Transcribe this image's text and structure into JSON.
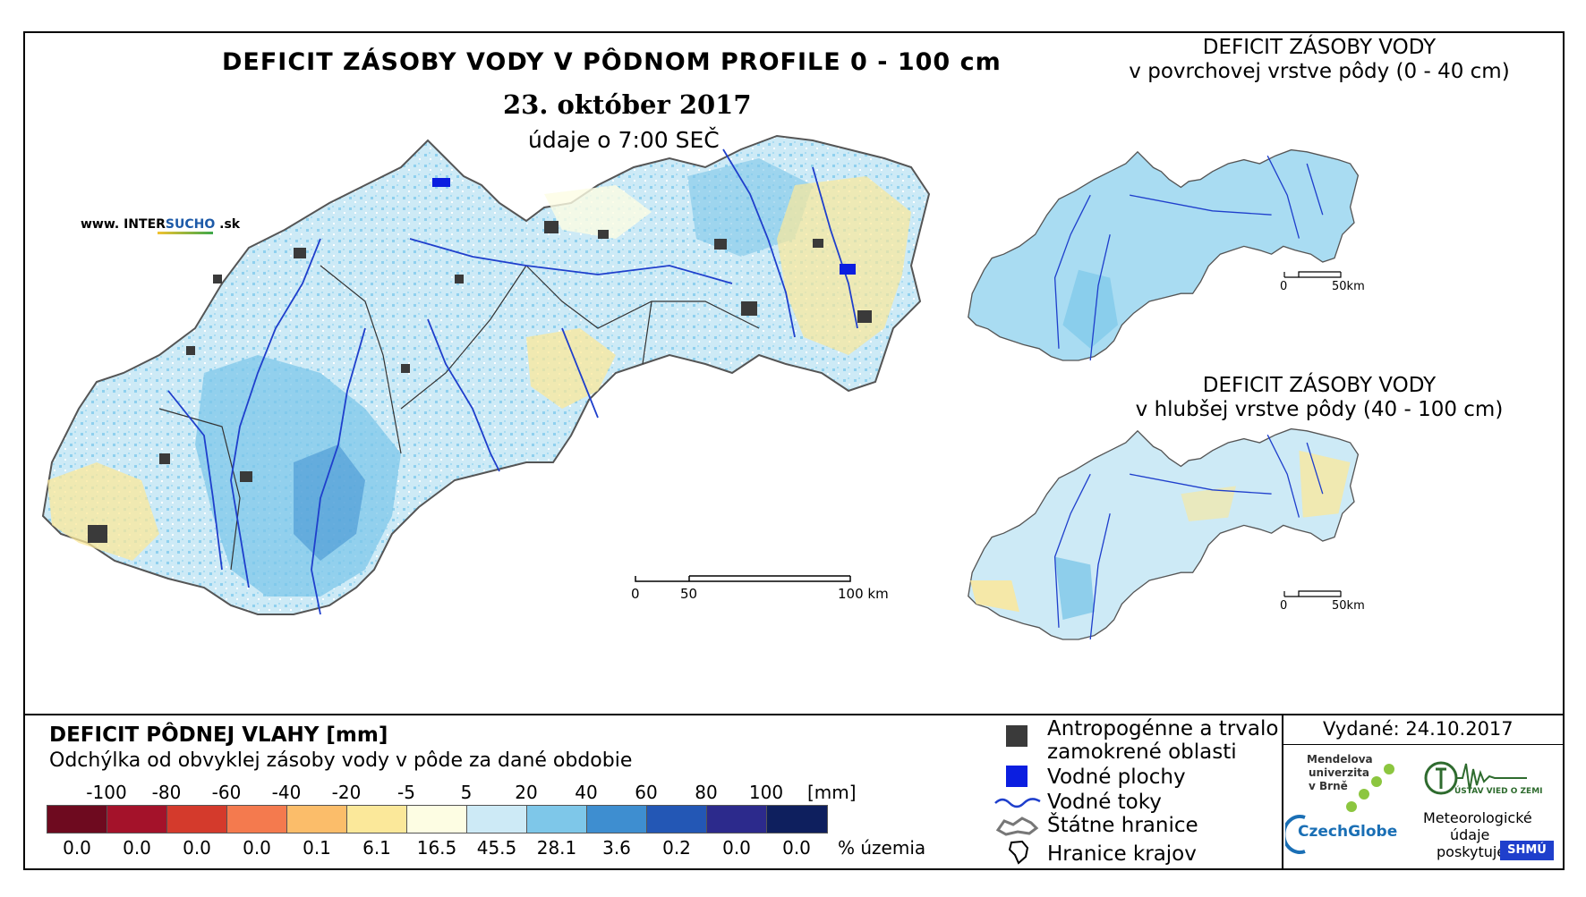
{
  "main_map": {
    "title": "DEFICIT ZÁSOBY VODY V PÔDNOM PROFILE 0 - 100 cm",
    "date": "23. október 2017",
    "time": "údaje o 7:00 SEČ",
    "website_prefix": "www. INTER",
    "website_brand": "SUCHO",
    "website_suffix": " .sk",
    "scale_labels": [
      "0",
      "50",
      "100 km"
    ]
  },
  "inset_top": {
    "title_line1": "DEFICIT ZÁSOBY VODY",
    "title_line2": "v povrchovej vrstve pôdy (0 - 40 cm)",
    "scale_labels": [
      "0",
      "50km"
    ]
  },
  "inset_bottom": {
    "title_line1": "DEFICIT ZÁSOBY VODY",
    "title_line2": "v hlubšej vrstve pôdy (40 - 100 cm)",
    "scale_labels": [
      "0",
      "50km"
    ]
  },
  "legend": {
    "title": "DEFICIT PÔDNEJ VLAHY [mm]",
    "subtitle": "Odchýlka od obvyklej zásoby vody v pôde za dané obdobie",
    "unit": "[mm]",
    "percent_unit": "% územia",
    "breaks": [
      "-100",
      "-80",
      "-60",
      "-40",
      "-20",
      "-5",
      "5",
      "20",
      "40",
      "60",
      "80",
      "100"
    ],
    "colors": [
      "#6e0a1f",
      "#a4122a",
      "#d43a2c",
      "#f47a4e",
      "#fbbd6a",
      "#fbe89a",
      "#fdfde3",
      "#cdeaf6",
      "#7ec7e9",
      "#3e8ed0",
      "#2357b5",
      "#2c2a8c",
      "#0e1f5e"
    ],
    "percentages": [
      "0.0",
      "0.0",
      "0.0",
      "0.0",
      "0.1",
      "6.1",
      "16.5",
      "45.5",
      "28.1",
      "3.6",
      "0.2",
      "0.0",
      "0.0"
    ]
  },
  "symbols": {
    "urban": "Antropogénne a trvalo",
    "urban_line2": "zamokrené oblasti",
    "water_bodies": "Vodné plochy",
    "rivers": "Vodné toky",
    "state_border": "Štátne hranice",
    "region_border": "Hranice krajov"
  },
  "issued": "Vydané: 24.10.2017",
  "logos": {
    "mendel_line1": "Mendelova",
    "mendel_line2": "univerzita",
    "mendel_line3": "v Brně",
    "czechglobe": "CzechGlobe",
    "uvz": "ÚSTAV VIED O ZEMI",
    "meteo_line1": "Meteorologické",
    "meteo_line2": "údaje",
    "meteo_line3": "poskytuje:",
    "shmu": "SHMÚ"
  }
}
